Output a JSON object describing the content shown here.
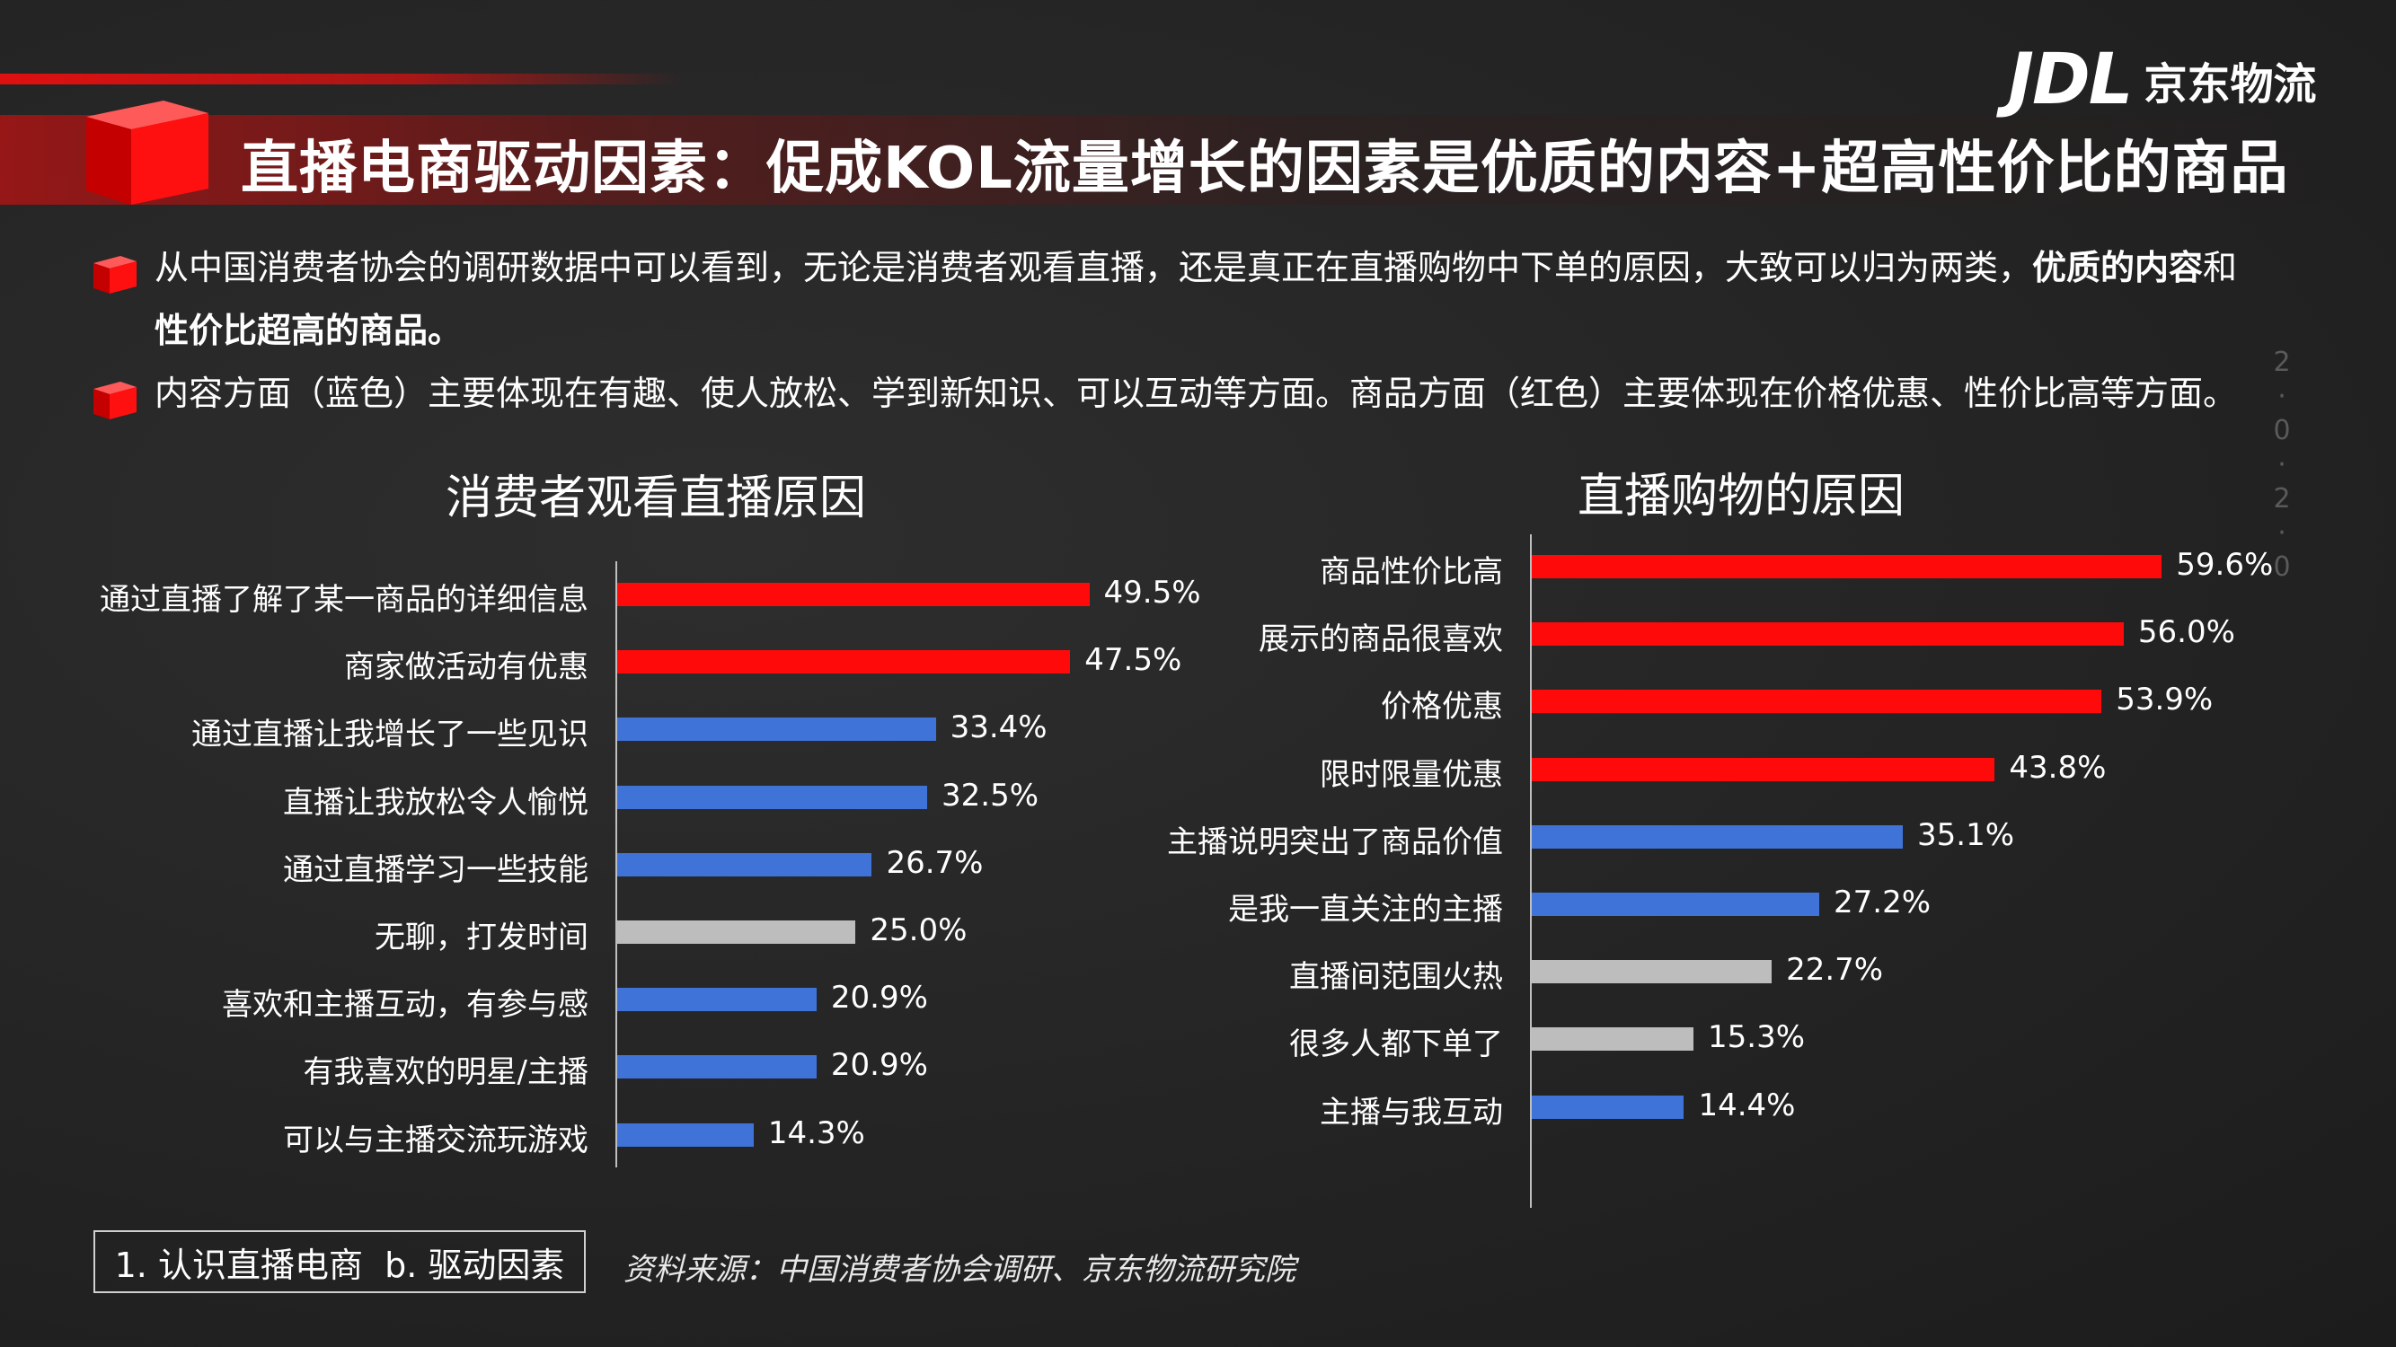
{
  "header": {
    "title": "直播电商驱动因素：促成KOL流量增长的因素是优质的内容+超高性价比的商品",
    "logo_mark": "JDL",
    "logo_text": "京东物流"
  },
  "bullets": [
    {
      "line1": "从中国消费者协会的调研数据中可以看到，无论是消费者观看直播，还是真正在直播购物中下单的原因，大致可以归为两类，",
      "bold1": "优质的内容",
      "mid": "和",
      "line2_bold": "性价比超高的商品。"
    },
    {
      "text": "内容方面（蓝色）主要体现在有趣、使人放松、学到新知识、可以互动等方面。商品方面（红色）主要体现在价格优惠、性价比高等方面。"
    }
  ],
  "side_date": [
    "2",
    "0",
    "2",
    "0"
  ],
  "colors": {
    "red": "#ff0a0a",
    "blue": "#3f73d8",
    "gray": "#bdbdbd"
  },
  "chart_data": [
    {
      "type": "bar",
      "orientation": "horizontal",
      "title": "消费者观看直播原因",
      "categories": [
        "通过直播了解了某一商品的详细信息",
        "商家做活动有优惠",
        "通过直播让我增长了一些见识",
        "直播让我放松令人愉悦",
        "通过直播学习一些技能",
        "无聊，打发时间",
        "喜欢和主播互动，有参与感",
        "有我喜欢的明星/主播",
        "可以与主播交流玩游戏"
      ],
      "values": [
        49.5,
        47.5,
        33.4,
        32.5,
        26.7,
        25.0,
        20.9,
        20.9,
        14.3
      ],
      "value_labels": [
        "49.5%",
        "47.5%",
        "33.4%",
        "32.5%",
        "26.7%",
        "25.0%",
        "20.9%",
        "20.9%",
        "14.3%"
      ],
      "colors": [
        "red",
        "red",
        "blue",
        "blue",
        "blue",
        "gray",
        "blue",
        "blue",
        "blue"
      ],
      "xlim": [
        0,
        60
      ],
      "grid": false
    },
    {
      "type": "bar",
      "orientation": "horizontal",
      "title": "直播购物的原因",
      "categories": [
        "商品性价比高",
        "展示的商品很喜欢",
        "价格优惠",
        "限时限量优惠",
        "主播说明突出了商品价值",
        "是我一直关注的主播",
        "直播间范围火热",
        "很多人都下单了",
        "主播与我互动"
      ],
      "values": [
        59.6,
        56.0,
        53.9,
        43.8,
        35.1,
        27.2,
        22.7,
        15.3,
        14.4
      ],
      "value_labels": [
        "59.6%",
        "56.0%",
        "53.9%",
        "43.8%",
        "35.1%",
        "27.2%",
        "22.7%",
        "15.3%",
        "14.4%"
      ],
      "colors": [
        "red",
        "red",
        "red",
        "red",
        "blue",
        "blue",
        "gray",
        "gray",
        "blue"
      ],
      "xlim": [
        0,
        60
      ],
      "grid": false
    }
  ],
  "footer": {
    "nav": "1. 认识直播电商  b. 驱动因素",
    "source": "资料来源：中国消费者协会调研、京东物流研究院"
  }
}
